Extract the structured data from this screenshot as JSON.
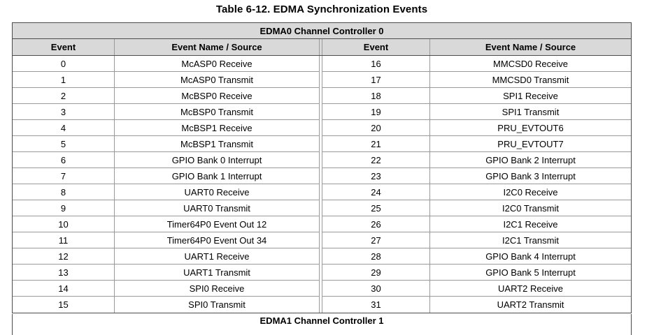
{
  "title": "Table 6-12. EDMA Synchronization Events",
  "colors": {
    "header_bg": "#d9d9d9",
    "border_dark": "#4c4c4c",
    "border_light": "#9a9a9a",
    "text": "#000000"
  },
  "table": {
    "group_header": "EDMA0 Channel Controller 0",
    "columns": [
      "Event",
      "Event Name / Source",
      "Event",
      "Event Name / Source"
    ],
    "rows": [
      {
        "left_event": "0",
        "left_name": "McASP0 Receive",
        "right_event": "16",
        "right_name": "MMCSD0 Receive"
      },
      {
        "left_event": "1",
        "left_name": "McASP0 Transmit",
        "right_event": "17",
        "right_name": "MMCSD0 Transmit"
      },
      {
        "left_event": "2",
        "left_name": "McBSP0 Receive",
        "right_event": "18",
        "right_name": "SPI1 Receive"
      },
      {
        "left_event": "3",
        "left_name": "McBSP0 Transmit",
        "right_event": "19",
        "right_name": "SPI1 Transmit"
      },
      {
        "left_event": "4",
        "left_name": "McBSP1 Receive",
        "right_event": "20",
        "right_name": "PRU_EVTOUT6"
      },
      {
        "left_event": "5",
        "left_name": "McBSP1 Transmit",
        "right_event": "21",
        "right_name": "PRU_EVTOUT7"
      },
      {
        "left_event": "6",
        "left_name": "GPIO Bank 0 Interrupt",
        "right_event": "22",
        "right_name": "GPIO Bank 2 Interrupt"
      },
      {
        "left_event": "7",
        "left_name": "GPIO Bank 1 Interrupt",
        "right_event": "23",
        "right_name": "GPIO Bank 3 Interrupt"
      },
      {
        "left_event": "8",
        "left_name": "UART0 Receive",
        "right_event": "24",
        "right_name": "I2C0 Receive"
      },
      {
        "left_event": "9",
        "left_name": "UART0 Transmit",
        "right_event": "25",
        "right_name": "I2C0 Transmit"
      },
      {
        "left_event": "10",
        "left_name": "Timer64P0 Event Out 12",
        "right_event": "26",
        "right_name": "I2C1 Receive"
      },
      {
        "left_event": "11",
        "left_name": "Timer64P0 Event Out 34",
        "right_event": "27",
        "right_name": "I2C1 Transmit"
      },
      {
        "left_event": "12",
        "left_name": "UART1 Receive",
        "right_event": "28",
        "right_name": "GPIO Bank 4 Interrupt"
      },
      {
        "left_event": "13",
        "left_name": "UART1 Transmit",
        "right_event": "29",
        "right_name": "GPIO Bank 5 Interrupt"
      },
      {
        "left_event": "14",
        "left_name": "SPI0 Receive",
        "right_event": "30",
        "right_name": "UART2 Receive"
      },
      {
        "left_event": "15",
        "left_name": "SPI0 Transmit",
        "right_event": "31",
        "right_name": "UART2 Transmit"
      }
    ]
  },
  "next_table": {
    "group_header": "EDMA1 Channel Controller 1"
  }
}
